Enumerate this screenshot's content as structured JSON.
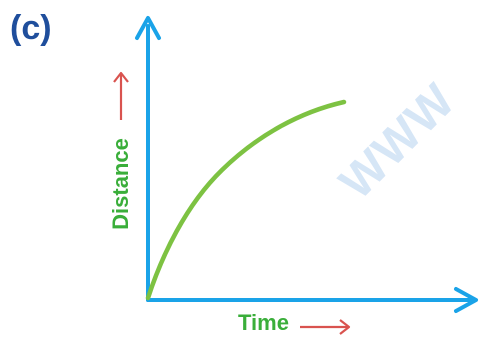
{
  "panel_label": "(c)",
  "x_axis_label": "Time",
  "y_axis_label": "Distance",
  "watermark": "WWW",
  "colors": {
    "panel_label": "#1f4e9c",
    "axes": "#1aa3e8",
    "curve": "#7dc242",
    "axis_label_text": "#3aae3a",
    "label_arrow": "#d9534f",
    "watermark": "#4a8fd8"
  },
  "icons": {
    "x_label_arrow": "right-arrow-icon",
    "y_label_arrow": "up-arrow-icon"
  }
}
